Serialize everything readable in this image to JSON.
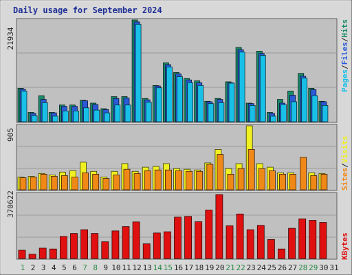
{
  "chart_data": {
    "type": "bar",
    "title": "Daily usage for September 2024",
    "days": [
      "1",
      "2",
      "3",
      "4",
      "5",
      "6",
      "7",
      "8",
      "9",
      "10",
      "11",
      "12",
      "13",
      "14",
      "15",
      "16",
      "17",
      "18",
      "19",
      "20",
      "21",
      "22",
      "23",
      "24",
      "25",
      "26",
      "27",
      "28",
      "29",
      "30",
      "31"
    ],
    "weekend_days": [
      "1",
      "7",
      "8",
      "14",
      "15",
      "21",
      "22",
      "28",
      "29"
    ],
    "panels": [
      {
        "id": "hits",
        "max_label": "21934",
        "ymax": 21934,
        "legend": [
          {
            "text": "Hits",
            "color": "#1a8a6a"
          },
          {
            "text": "Files",
            "color": "#2a5ad8"
          },
          {
            "text": "Pages",
            "color": "#18c0e8"
          }
        ],
        "series": [
          {
            "name": "Hits",
            "color": "#1a8a6a",
            "values": [
              7200,
              2000,
              5600,
              2000,
              3600,
              3600,
              4600,
              4000,
              2800,
              5400,
              5400,
              21934,
              5000,
              7800,
              12700,
              10600,
              9300,
              8800,
              4400,
              5000,
              8600,
              16000,
              4000,
              15200,
              2000,
              4800,
              6600,
              10400,
              7200,
              4400,
              null
            ]
          },
          {
            "name": "Files",
            "color": "#2a5ad8",
            "values": [
              7000,
              1800,
              4800,
              1900,
              3300,
              3300,
              4500,
              3700,
              2600,
              5000,
              5100,
              21500,
              4700,
              7700,
              12300,
              10300,
              9000,
              8400,
              4300,
              4800,
              8400,
              15500,
              3900,
              14700,
              1800,
              4000,
              5700,
              9800,
              6900,
              4300,
              null
            ]
          },
          {
            "name": "Pages",
            "color": "#18c0e8",
            "values": [
              6600,
              1300,
              4100,
              1200,
              2300,
              2300,
              3000,
              2500,
              1900,
              3600,
              3600,
              21000,
              4200,
              7300,
              11800,
              9700,
              8400,
              7800,
              3900,
              4100,
              8300,
              15000,
              3500,
              14300,
              1200,
              3700,
              4300,
              9400,
              5600,
              3500,
              null
            ]
          }
        ]
      },
      {
        "id": "visits",
        "max_label": "905",
        "ymax": 905,
        "legend": [
          {
            "text": "Visits",
            "color": "#f0f020"
          },
          {
            "text": "Sites",
            "color": "#f08818"
          }
        ],
        "series": [
          {
            "name": "Visits",
            "color": "#f0f020",
            "values": [
              180,
              190,
              230,
              210,
              250,
              270,
              390,
              260,
              180,
              260,
              370,
              260,
              320,
              330,
              370,
              300,
              290,
              280,
              380,
              570,
              300,
              370,
              905,
              370,
              320,
              240,
              240,
              null,
              240,
              230,
              null
            ]
          },
          {
            "name": "Sites",
            "color": "#f08818",
            "values": [
              170,
              180,
              220,
              190,
              200,
              180,
              240,
              220,
              160,
              210,
              290,
              230,
              270,
              280,
              280,
              270,
              260,
              260,
              360,
              500,
              220,
              300,
              570,
              300,
              270,
              220,
              220,
              460,
              200,
              220,
              null
            ]
          }
        ]
      },
      {
        "id": "kbytes",
        "max_label": "370622",
        "ymax": 370622,
        "legend": [
          {
            "text": "KBytes",
            "color": "#e01010"
          }
        ],
        "series": [
          {
            "name": "KBytes",
            "color": "#e01010",
            "values": [
              48000,
              25000,
              60000,
              55000,
              128000,
              145000,
              167000,
              145000,
              97000,
              160000,
              185000,
              212000,
              85000,
              148000,
              155000,
              240000,
              244000,
              213000,
              281000,
              370622,
              190000,
              258000,
              167000,
              192000,
              110000,
              55000,
              175000,
              230000,
              221000,
              209000,
              null
            ]
          }
        ]
      }
    ]
  }
}
